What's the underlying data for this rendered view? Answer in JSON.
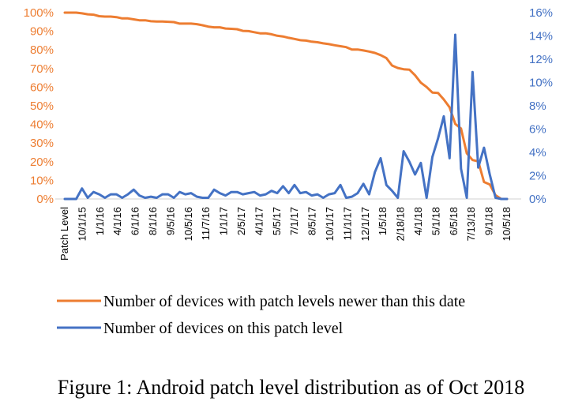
{
  "caption": "Figure 1: Android patch level distribution as of Oct 2018",
  "chart_data": {
    "type": "line",
    "x_tick_labels": [
      "Patch Level",
      "10/1/15",
      "1/1/16",
      "4/1/16",
      "6/1/16",
      "8/1/16",
      "9/5/16",
      "10/5/16",
      "11/7/16",
      "1/1/17",
      "2/5/17",
      "4/1/17",
      "5/5/17",
      "7/1/17",
      "8/5/17",
      "10/1/17",
      "11/1/17",
      "12/1/17",
      "1/5/18",
      "2/18/18",
      "4/1/18",
      "5/1/18",
      "6/5/18",
      "7/13/18",
      "9/1/18",
      "10/5/18"
    ],
    "y_left": {
      "min": 0,
      "max": 100,
      "ticks": [
        "0%",
        "10%",
        "20%",
        "30%",
        "40%",
        "50%",
        "60%",
        "70%",
        "80%",
        "90%",
        "100%"
      ],
      "color": "#ED7D31"
    },
    "y_right": {
      "min": 0,
      "max": 16,
      "ticks": [
        "0%",
        "2%",
        "4%",
        "6%",
        "8%",
        "10%",
        "12%",
        "14%",
        "16%"
      ],
      "color": "#4472C4"
    },
    "grid": false,
    "legend_position": "bottom",
    "series": [
      {
        "name": "Number of devices with patch levels newer than this date",
        "color": "#ED7D31",
        "axis": "left",
        "values": [
          100,
          100,
          100,
          99.6,
          99.1,
          98.9,
          98.1,
          97.9,
          97.9,
          97.6,
          96.9,
          96.9,
          96.4,
          95.9,
          95.9,
          95.4,
          95.2,
          95.2,
          95.1,
          94.9,
          94.1,
          94.1,
          94.1,
          93.8,
          93.2,
          92.5,
          92.1,
          92.1,
          91.5,
          91.3,
          91.1,
          90.2,
          90.1,
          89.5,
          88.9,
          88.9,
          88.4,
          87.6,
          87.2,
          86.5,
          85.9,
          85.2,
          85.0,
          84.4,
          84.1,
          83.5,
          83.1,
          82.5,
          82.0,
          81.5,
          80.2,
          80.2,
          79.7,
          79.1,
          78.4,
          77.2,
          75.6,
          71.6,
          70.3,
          69.6,
          69.4,
          66.4,
          62.4,
          60.1,
          57.1,
          56.9,
          53.4,
          49.2,
          40.3,
          37.8,
          24.5,
          20.9,
          20.2,
          9.1,
          7.8,
          2.0,
          0,
          0
        ]
      },
      {
        "name": "Number of devices on this patch level",
        "color": "#4472C4",
        "axis": "right",
        "values": [
          0,
          0,
          0,
          0.9,
          0.1,
          0.6,
          0.4,
          0.1,
          0.4,
          0.4,
          0.1,
          0.4,
          0.8,
          0.3,
          0.1,
          0.2,
          0.1,
          0.4,
          0.4,
          0.1,
          0.6,
          0.4,
          0.5,
          0.2,
          0.1,
          0.1,
          0.8,
          0.5,
          0.3,
          0.6,
          0.6,
          0.4,
          0.5,
          0.6,
          0.3,
          0.4,
          0.7,
          0.5,
          1.1,
          0.5,
          1.2,
          0.5,
          0.6,
          0.3,
          0.4,
          0.1,
          0.4,
          0.5,
          1.2,
          0.1,
          0.2,
          0.5,
          1.3,
          0.4,
          2.3,
          3.5,
          1.2,
          0.7,
          0.1,
          4.1,
          3.2,
          2.1,
          3.1,
          0.1,
          3.6,
          5.2,
          7.1,
          3.5,
          14.1,
          2.6,
          0.1,
          10.9,
          2.7,
          4.4,
          2.1,
          0.1,
          0,
          0
        ]
      }
    ]
  }
}
